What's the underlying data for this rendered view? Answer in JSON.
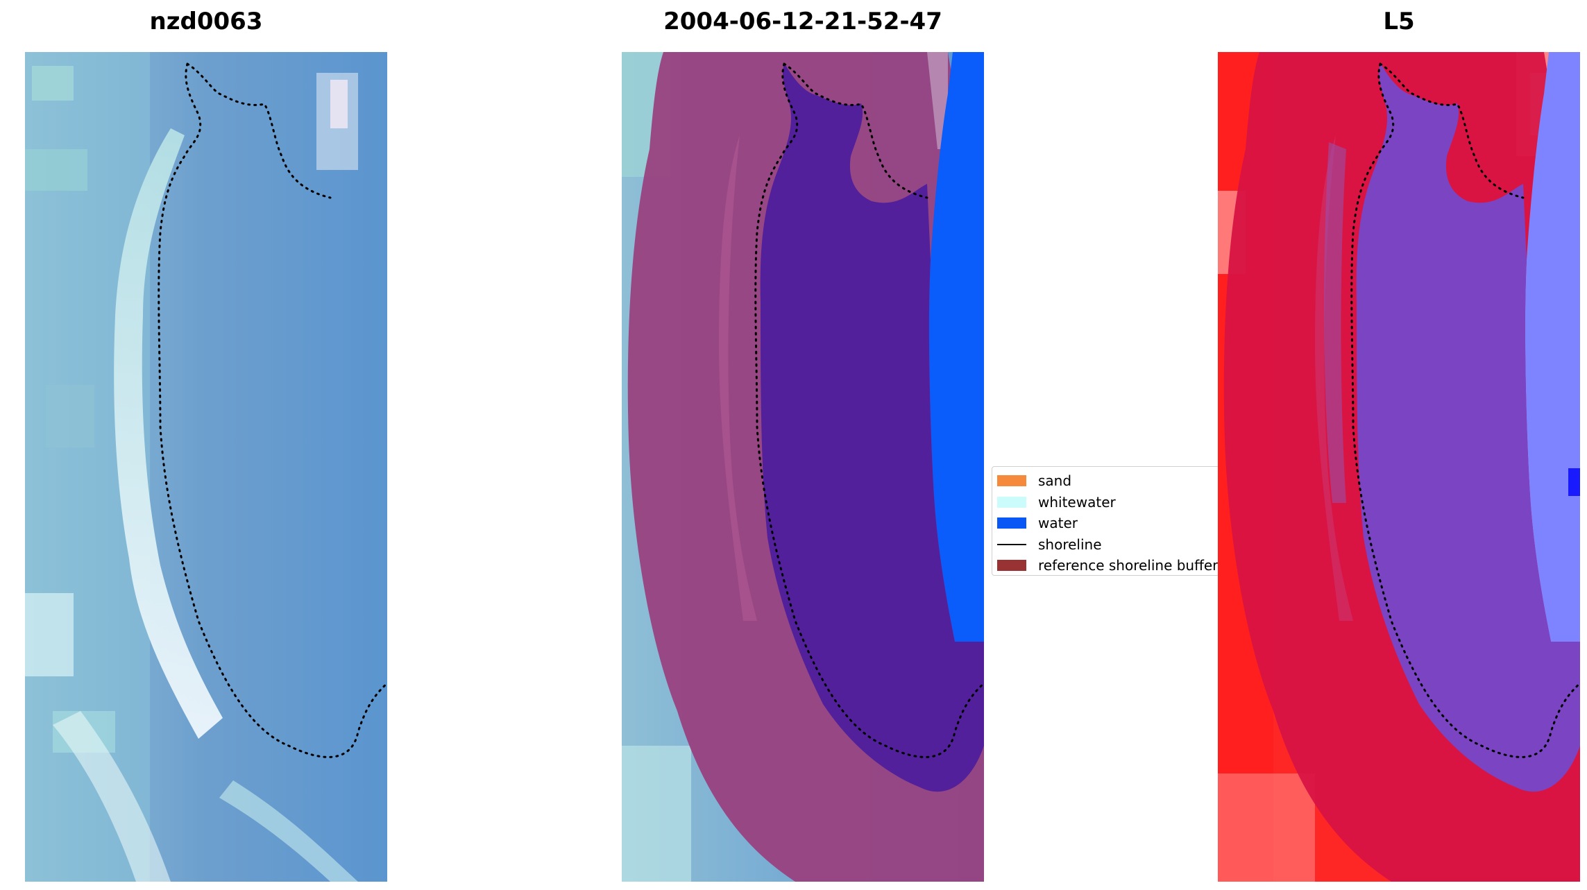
{
  "panels": [
    {
      "title": "nzd0063",
      "kind": "rgb"
    },
    {
      "title": "2004-06-12-21-52-47",
      "kind": "classified"
    },
    {
      "title": "L5",
      "kind": "index"
    }
  ],
  "legend": {
    "items": [
      {
        "label": "sand",
        "type": "patch",
        "color": "#f58a3c"
      },
      {
        "label": "whitewater",
        "type": "patch",
        "color": "#ccfbfb"
      },
      {
        "label": "water",
        "type": "patch",
        "color": "#0957f5"
      },
      {
        "label": "shoreline",
        "type": "line",
        "color": "#000000"
      },
      {
        "label": "reference shoreline buffer",
        "type": "patch",
        "color": "#993333"
      }
    ]
  },
  "colors": {
    "water_class": "#0a5cfb",
    "buffer": "#993f7e",
    "sand_class": "#52209a",
    "index_land": "#d81343",
    "index_water": "#7a44c3"
  }
}
